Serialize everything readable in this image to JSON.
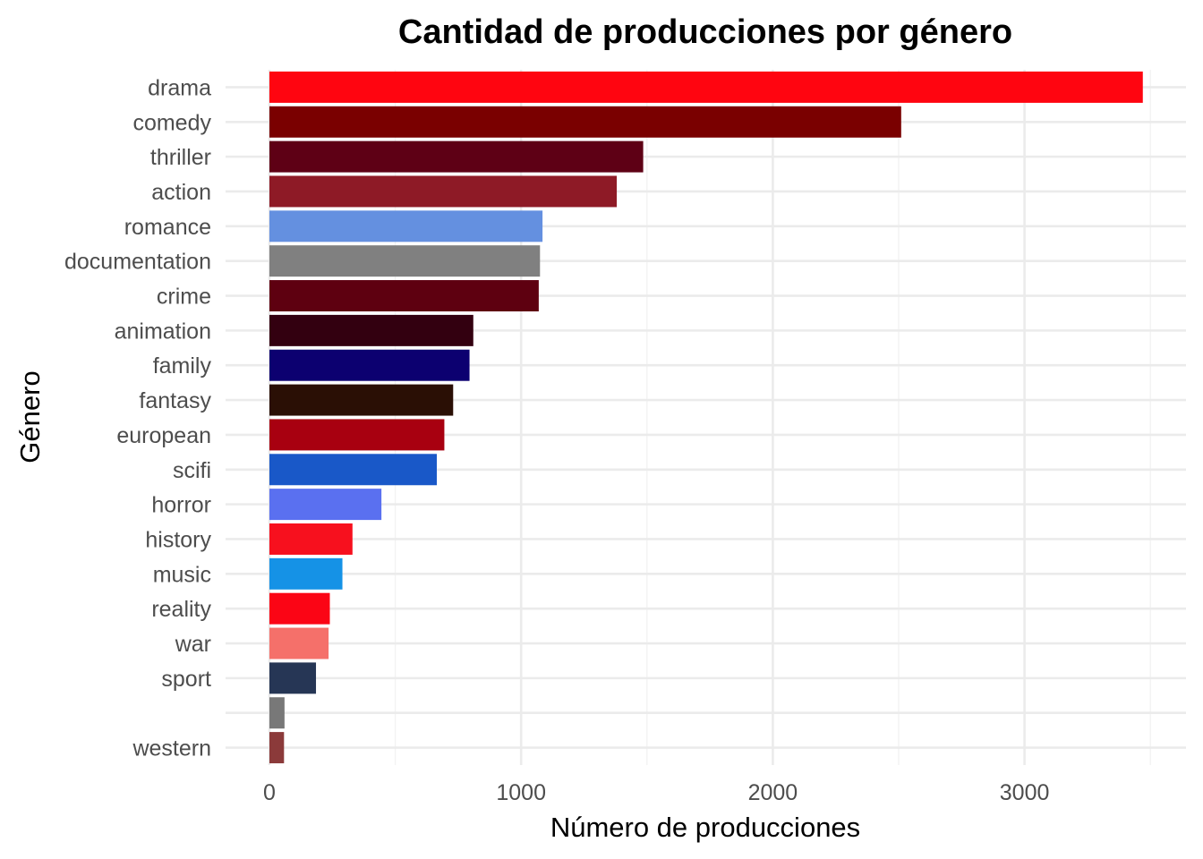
{
  "chart_data": {
    "type": "bar",
    "orientation": "horizontal",
    "title": "Cantidad de producciones por género",
    "xlabel": "Número de producciones",
    "ylabel": "Género",
    "xlim": [
      -170,
      3590
    ],
    "xticks": [
      0,
      1000,
      2000,
      3000
    ],
    "xtick_labels": [
      "0",
      "1000",
      "2000",
      "3000"
    ],
    "grid": true,
    "legend": "none",
    "categories": [
      "drama",
      "comedy",
      "thriller",
      "action",
      "romance",
      "documentation",
      "crime",
      "animation",
      "family",
      "fantasy",
      "european",
      "scifi",
      "horror",
      "history",
      "music",
      "reality",
      "war",
      "sport",
      "",
      "western"
    ],
    "values": [
      3470,
      2510,
      1485,
      1380,
      1085,
      1075,
      1070,
      810,
      795,
      730,
      695,
      665,
      445,
      330,
      290,
      240,
      235,
      185,
      60,
      58
    ],
    "colors": [
      "#FF0510",
      "#7A0000",
      "#5E0015",
      "#8E1A26",
      "#6490E0",
      "#808080",
      "#5E0010",
      "#330010",
      "#0C0070",
      "#2A0F05",
      "#A80010",
      "#1958C8",
      "#5A70F0",
      "#F7101E",
      "#1592E6",
      "#FB0515",
      "#F5706A",
      "#263655",
      "#787878",
      "#8B3A3A"
    ]
  }
}
